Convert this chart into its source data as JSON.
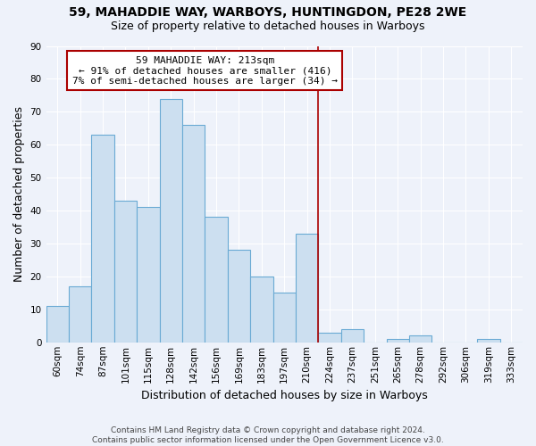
{
  "title": "59, MAHADDIE WAY, WARBOYS, HUNTINGDON, PE28 2WE",
  "subtitle": "Size of property relative to detached houses in Warboys",
  "xlabel": "Distribution of detached houses by size in Warboys",
  "ylabel": "Number of detached properties",
  "categories": [
    "60sqm",
    "74sqm",
    "87sqm",
    "101sqm",
    "115sqm",
    "128sqm",
    "142sqm",
    "156sqm",
    "169sqm",
    "183sqm",
    "197sqm",
    "210sqm",
    "224sqm",
    "237sqm",
    "251sqm",
    "265sqm",
    "278sqm",
    "292sqm",
    "306sqm",
    "319sqm",
    "333sqm"
  ],
  "values": [
    11,
    17,
    63,
    43,
    41,
    74,
    66,
    38,
    28,
    20,
    15,
    33,
    3,
    4,
    0,
    1,
    2,
    0,
    0,
    1,
    0
  ],
  "bar_color": "#ccdff0",
  "bar_edge_color": "#6aaad4",
  "vline_color": "#aa0000",
  "vline_index": 11.5,
  "annotation_text_line1": "59 MAHADDIE WAY: 213sqm",
  "annotation_text_line2": "← 91% of detached houses are smaller (416)",
  "annotation_text_line3": "7% of semi-detached houses are larger (34) →",
  "annotation_box_color": "#ffffff",
  "annotation_box_edge": "#aa0000",
  "ylim": [
    0,
    90
  ],
  "yticks": [
    0,
    10,
    20,
    30,
    40,
    50,
    60,
    70,
    80,
    90
  ],
  "footer_line1": "Contains HM Land Registry data © Crown copyright and database right 2024.",
  "footer_line2": "Contains public sector information licensed under the Open Government Licence v3.0.",
  "bg_color": "#eef2fa",
  "grid_color": "#ffffff",
  "title_fontsize": 10,
  "subtitle_fontsize": 9,
  "ylabel_fontsize": 9,
  "xlabel_fontsize": 9,
  "tick_fontsize": 7.5,
  "annotation_fontsize": 8,
  "footer_fontsize": 6.5
}
